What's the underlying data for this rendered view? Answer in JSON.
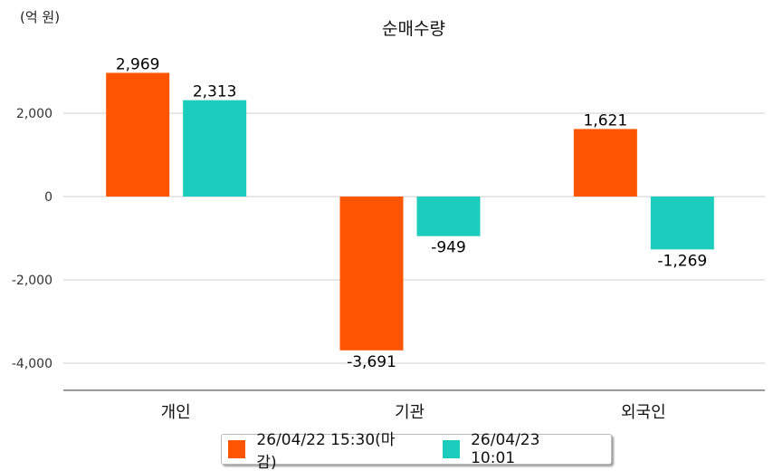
{
  "chart_data": {
    "type": "bar",
    "title": "순매수량",
    "unit_label": "(억 원)",
    "xlabel": "",
    "ylabel": "",
    "categories": [
      "개인",
      "기관",
      "외국인"
    ],
    "series": [
      {
        "name": "26/04/22 15:30(마감)",
        "color": "#ff5400",
        "values": [
          2969,
          -3691,
          1621
        ],
        "labels": [
          "2,969",
          "-3,691",
          "1,621"
        ]
      },
      {
        "name": "26/04/23 10:01",
        "color": "#1ccdbd",
        "values": [
          2313,
          -949,
          -1269
        ],
        "labels": [
          "2,313",
          "-949",
          "-1,269"
        ]
      }
    ],
    "yticks": [
      2000,
      0,
      -2000,
      -4000
    ],
    "ytick_labels": [
      "2,000",
      "0",
      "-2,000",
      "-4,000"
    ],
    "ylim": [
      -4650,
      3600
    ],
    "grid": true,
    "legend_position": "bottom"
  }
}
